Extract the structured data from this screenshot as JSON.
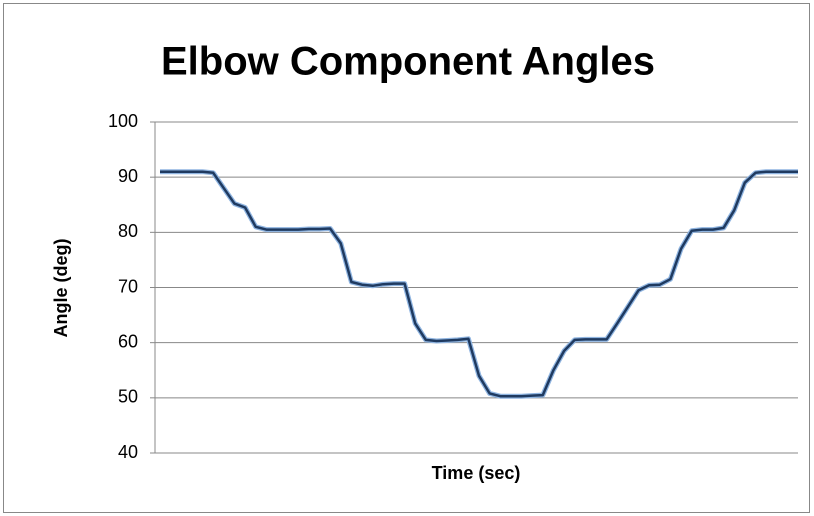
{
  "chart_data": {
    "type": "line",
    "title": "Elbow Component Angles",
    "x_label": "Time (sec)",
    "y_label": "Angle (deg)",
    "series": [
      {
        "color": "#1f3a60",
        "values": [
          91,
          91,
          91,
          91,
          91,
          90.8,
          88,
          85.2,
          84.5,
          81,
          80.5,
          80.5,
          80.5,
          80.5,
          80.6,
          80.6,
          80.7,
          78,
          71,
          70.5,
          70.3,
          70.6,
          70.7,
          70.7,
          63.5,
          60.5,
          60.3,
          60.4,
          60.5,
          60.7,
          54,
          50.8,
          50.3,
          50.3,
          50.3,
          50.4,
          50.5,
          55,
          58.5,
          60.5,
          60.6,
          60.6,
          60.6,
          63.5,
          66.5,
          69.5,
          70.4,
          70.5,
          71.5,
          77,
          80.3,
          80.5,
          80.5,
          80.8,
          84,
          89,
          90.8,
          91,
          91,
          91,
          91
        ]
      }
    ],
    "ylim": [
      40,
      100
    ],
    "yticks": [
      40,
      50,
      60,
      70,
      80,
      90,
      100
    ],
    "grid": true
  }
}
